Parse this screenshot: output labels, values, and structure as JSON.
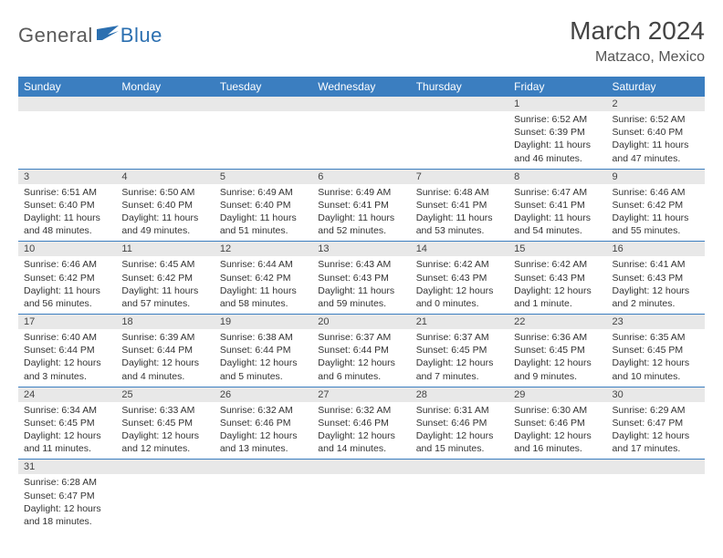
{
  "logo": {
    "general": "General",
    "blue": "Blue"
  },
  "title": "March 2024",
  "location": "Matzaco, Mexico",
  "colors": {
    "header_blue": "#3b7ec0",
    "row_gray": "#e8e8e8",
    "logo_dark": "#5a5a5a",
    "logo_blue": "#2b6fb0"
  },
  "weekdays": [
    "Sunday",
    "Monday",
    "Tuesday",
    "Wednesday",
    "Thursday",
    "Friday",
    "Saturday"
  ],
  "weeks": [
    [
      null,
      null,
      null,
      null,
      null,
      {
        "n": "1",
        "sr": "Sunrise: 6:52 AM",
        "ss": "Sunset: 6:39 PM",
        "dl": "Daylight: 11 hours and 46 minutes."
      },
      {
        "n": "2",
        "sr": "Sunrise: 6:52 AM",
        "ss": "Sunset: 6:40 PM",
        "dl": "Daylight: 11 hours and 47 minutes."
      }
    ],
    [
      {
        "n": "3",
        "sr": "Sunrise: 6:51 AM",
        "ss": "Sunset: 6:40 PM",
        "dl": "Daylight: 11 hours and 48 minutes."
      },
      {
        "n": "4",
        "sr": "Sunrise: 6:50 AM",
        "ss": "Sunset: 6:40 PM",
        "dl": "Daylight: 11 hours and 49 minutes."
      },
      {
        "n": "5",
        "sr": "Sunrise: 6:49 AM",
        "ss": "Sunset: 6:40 PM",
        "dl": "Daylight: 11 hours and 51 minutes."
      },
      {
        "n": "6",
        "sr": "Sunrise: 6:49 AM",
        "ss": "Sunset: 6:41 PM",
        "dl": "Daylight: 11 hours and 52 minutes."
      },
      {
        "n": "7",
        "sr": "Sunrise: 6:48 AM",
        "ss": "Sunset: 6:41 PM",
        "dl": "Daylight: 11 hours and 53 minutes."
      },
      {
        "n": "8",
        "sr": "Sunrise: 6:47 AM",
        "ss": "Sunset: 6:41 PM",
        "dl": "Daylight: 11 hours and 54 minutes."
      },
      {
        "n": "9",
        "sr": "Sunrise: 6:46 AM",
        "ss": "Sunset: 6:42 PM",
        "dl": "Daylight: 11 hours and 55 minutes."
      }
    ],
    [
      {
        "n": "10",
        "sr": "Sunrise: 6:46 AM",
        "ss": "Sunset: 6:42 PM",
        "dl": "Daylight: 11 hours and 56 minutes."
      },
      {
        "n": "11",
        "sr": "Sunrise: 6:45 AM",
        "ss": "Sunset: 6:42 PM",
        "dl": "Daylight: 11 hours and 57 minutes."
      },
      {
        "n": "12",
        "sr": "Sunrise: 6:44 AM",
        "ss": "Sunset: 6:42 PM",
        "dl": "Daylight: 11 hours and 58 minutes."
      },
      {
        "n": "13",
        "sr": "Sunrise: 6:43 AM",
        "ss": "Sunset: 6:43 PM",
        "dl": "Daylight: 11 hours and 59 minutes."
      },
      {
        "n": "14",
        "sr": "Sunrise: 6:42 AM",
        "ss": "Sunset: 6:43 PM",
        "dl": "Daylight: 12 hours and 0 minutes."
      },
      {
        "n": "15",
        "sr": "Sunrise: 6:42 AM",
        "ss": "Sunset: 6:43 PM",
        "dl": "Daylight: 12 hours and 1 minute."
      },
      {
        "n": "16",
        "sr": "Sunrise: 6:41 AM",
        "ss": "Sunset: 6:43 PM",
        "dl": "Daylight: 12 hours and 2 minutes."
      }
    ],
    [
      {
        "n": "17",
        "sr": "Sunrise: 6:40 AM",
        "ss": "Sunset: 6:44 PM",
        "dl": "Daylight: 12 hours and 3 minutes."
      },
      {
        "n": "18",
        "sr": "Sunrise: 6:39 AM",
        "ss": "Sunset: 6:44 PM",
        "dl": "Daylight: 12 hours and 4 minutes."
      },
      {
        "n": "19",
        "sr": "Sunrise: 6:38 AM",
        "ss": "Sunset: 6:44 PM",
        "dl": "Daylight: 12 hours and 5 minutes."
      },
      {
        "n": "20",
        "sr": "Sunrise: 6:37 AM",
        "ss": "Sunset: 6:44 PM",
        "dl": "Daylight: 12 hours and 6 minutes."
      },
      {
        "n": "21",
        "sr": "Sunrise: 6:37 AM",
        "ss": "Sunset: 6:45 PM",
        "dl": "Daylight: 12 hours and 7 minutes."
      },
      {
        "n": "22",
        "sr": "Sunrise: 6:36 AM",
        "ss": "Sunset: 6:45 PM",
        "dl": "Daylight: 12 hours and 9 minutes."
      },
      {
        "n": "23",
        "sr": "Sunrise: 6:35 AM",
        "ss": "Sunset: 6:45 PM",
        "dl": "Daylight: 12 hours and 10 minutes."
      }
    ],
    [
      {
        "n": "24",
        "sr": "Sunrise: 6:34 AM",
        "ss": "Sunset: 6:45 PM",
        "dl": "Daylight: 12 hours and 11 minutes."
      },
      {
        "n": "25",
        "sr": "Sunrise: 6:33 AM",
        "ss": "Sunset: 6:45 PM",
        "dl": "Daylight: 12 hours and 12 minutes."
      },
      {
        "n": "26",
        "sr": "Sunrise: 6:32 AM",
        "ss": "Sunset: 6:46 PM",
        "dl": "Daylight: 12 hours and 13 minutes."
      },
      {
        "n": "27",
        "sr": "Sunrise: 6:32 AM",
        "ss": "Sunset: 6:46 PM",
        "dl": "Daylight: 12 hours and 14 minutes."
      },
      {
        "n": "28",
        "sr": "Sunrise: 6:31 AM",
        "ss": "Sunset: 6:46 PM",
        "dl": "Daylight: 12 hours and 15 minutes."
      },
      {
        "n": "29",
        "sr": "Sunrise: 6:30 AM",
        "ss": "Sunset: 6:46 PM",
        "dl": "Daylight: 12 hours and 16 minutes."
      },
      {
        "n": "30",
        "sr": "Sunrise: 6:29 AM",
        "ss": "Sunset: 6:47 PM",
        "dl": "Daylight: 12 hours and 17 minutes."
      }
    ],
    [
      {
        "n": "31",
        "sr": "Sunrise: 6:28 AM",
        "ss": "Sunset: 6:47 PM",
        "dl": "Daylight: 12 hours and 18 minutes."
      },
      null,
      null,
      null,
      null,
      null,
      null
    ]
  ]
}
